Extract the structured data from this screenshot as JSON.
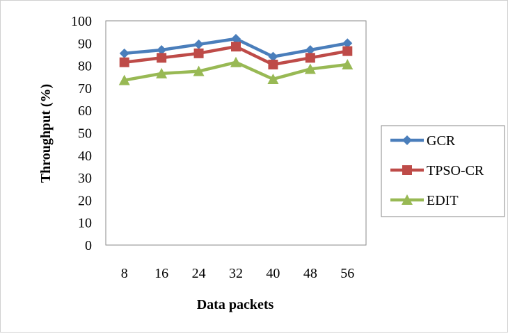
{
  "chart_data": {
    "type": "line",
    "categories": [
      "8",
      "16",
      "24",
      "32",
      "40",
      "48",
      "56"
    ],
    "series": [
      {
        "name": "GCR",
        "values": [
          85.5,
          87,
          89.5,
          92,
          84,
          87,
          90
        ],
        "color": "#4a7ebb",
        "marker": "diamond"
      },
      {
        "name": "TPSO-CR",
        "values": [
          81.5,
          83.5,
          85.5,
          88.5,
          80.5,
          83.5,
          86.5
        ],
        "color": "#be4b48",
        "marker": "square"
      },
      {
        "name": "EDIT",
        "values": [
          73.5,
          76.5,
          77.5,
          81.5,
          74,
          78.5,
          80.5
        ],
        "color": "#98b954",
        "marker": "triangle"
      }
    ],
    "yticks": [
      "0",
      "10",
      "20",
      "30",
      "40",
      "50",
      "60",
      "70",
      "80",
      "90",
      "100"
    ],
    "title": "",
    "xlabel": "Data packets",
    "ylabel": "Throughput (%)",
    "ylim": [
      0,
      100
    ],
    "grid": false,
    "legend_position": "right"
  }
}
